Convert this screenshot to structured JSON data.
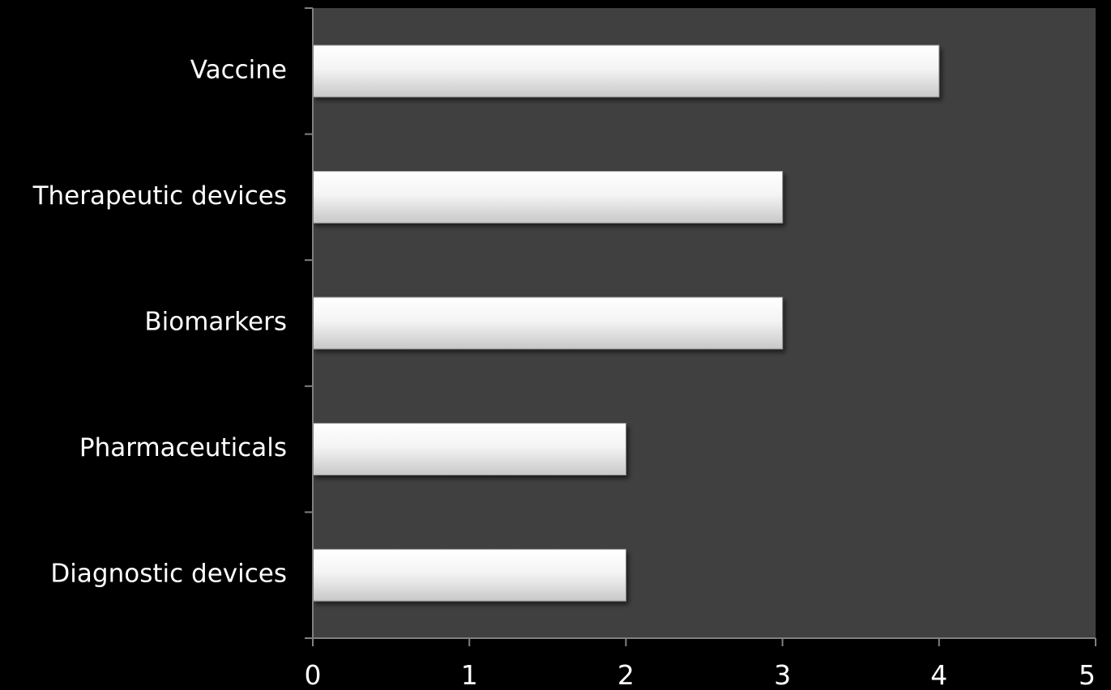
{
  "colors": {
    "background": "#000000",
    "plot_area": "#404040",
    "bar_fill_top": "#ffffff",
    "bar_fill_bottom": "#c8c8c8",
    "axis_line": "#808080",
    "text": "#ffffff"
  },
  "chart_data": {
    "type": "bar",
    "orientation": "horizontal",
    "categories": [
      "Diagnostic devices",
      "Pharmaceuticals",
      "Biomarkers",
      "Therapeutic devices",
      "Vaccine"
    ],
    "values": [
      2,
      2,
      3,
      3,
      4
    ],
    "xlim": [
      0,
      5
    ],
    "xticks": [
      "0",
      "1",
      "2",
      "3",
      "4",
      "5"
    ],
    "grid": false,
    "legend": "none"
  }
}
